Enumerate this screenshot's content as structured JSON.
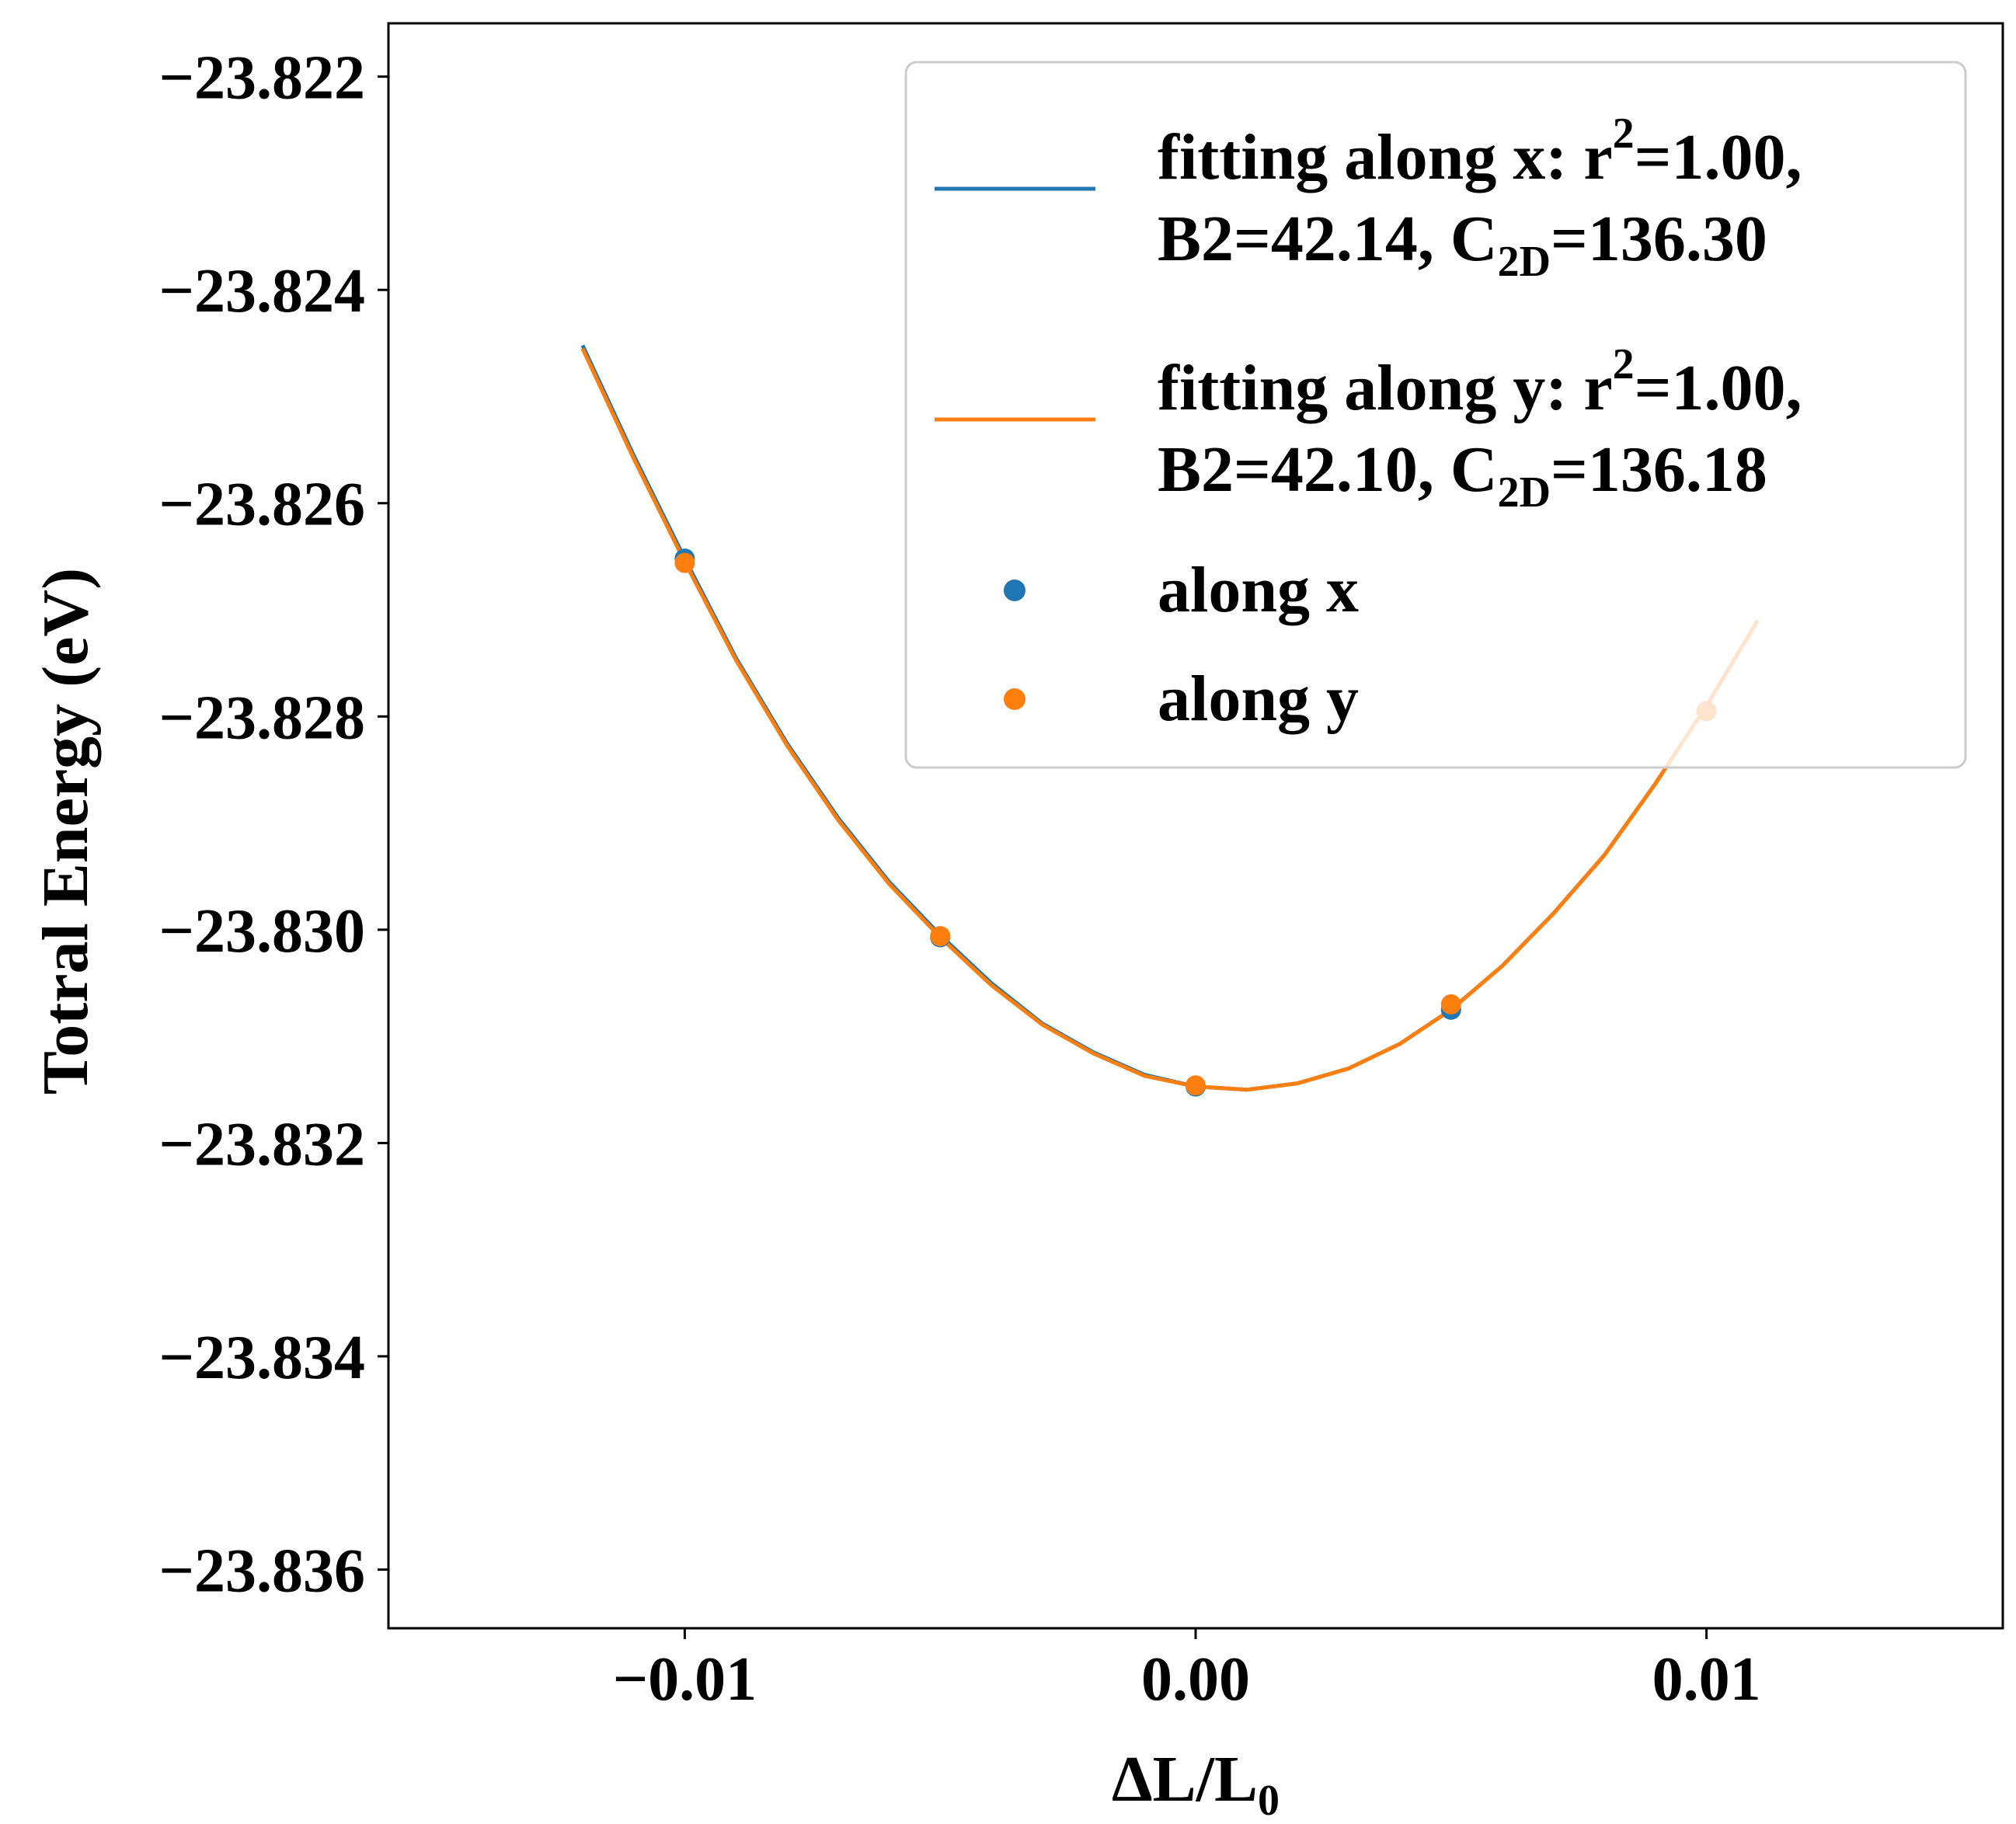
{
  "chart_data": {
    "type": "scatter",
    "xlabel": "ΔL/L",
    "xlabel_sub": "0",
    "ylabel": "Totral Energy (eV)",
    "xlim": [
      -0.0158,
      0.0158
    ],
    "ylim": [
      -23.83655,
      -23.8215
    ],
    "xticks": [
      -0.01,
      0.0,
      0.01
    ],
    "xtick_labels": [
      "−0.01",
      "0.00",
      "0.01"
    ],
    "yticks": [
      -23.822,
      -23.824,
      -23.826,
      -23.828,
      -23.83,
      -23.832,
      -23.834,
      -23.836
    ],
    "ytick_labels": [
      "−23.822",
      "−23.824",
      "−23.826",
      "−23.828",
      "−23.830",
      "−23.832",
      "−23.834",
      "−23.836"
    ],
    "grid": false,
    "legend_position": "top-right",
    "fit_curves": [
      {
        "name_line1_pre": "fitting along x: r",
        "name_line1_sup": "2",
        "name_line1_post": "=1.00,",
        "name_line2_pre": "B2=42.14, C",
        "name_line2_sub": "2D",
        "name_line2_post": "=136.30",
        "color": "#1f77b4",
        "x": [
          -0.012,
          -0.011,
          -0.01,
          -0.009,
          -0.008,
          -0.007,
          -0.006,
          -0.005,
          -0.004,
          -0.003,
          -0.002,
          -0.001,
          0.0,
          0.001,
          0.002,
          0.003,
          0.004,
          0.005,
          0.006,
          0.007,
          0.008,
          0.009,
          0.01,
          0.011
        ],
        "y": [
          -23.82452,
          -23.82555,
          -23.82652,
          -23.82745,
          -23.82825,
          -23.82895,
          -23.82955,
          -23.83005,
          -23.8305,
          -23.83088,
          -23.83115,
          -23.83136,
          -23.83147,
          -23.8315,
          -23.83144,
          -23.8313,
          -23.83107,
          -23.83075,
          -23.83034,
          -23.82985,
          -23.8293,
          -23.82863,
          -23.8279,
          -23.8271
        ]
      },
      {
        "name_line1_pre": "fitting along y: r",
        "name_line1_sup": "2",
        "name_line1_post": "=1.00,",
        "name_line2_pre": "B2=42.10, C",
        "name_line2_sub": "2D",
        "name_line2_post": "=136.18",
        "color": "#ff7f0e",
        "x": [
          -0.012,
          -0.011,
          -0.01,
          -0.009,
          -0.008,
          -0.007,
          -0.006,
          -0.005,
          -0.004,
          -0.003,
          -0.002,
          -0.001,
          0.0,
          0.001,
          0.002,
          0.003,
          0.004,
          0.005,
          0.006,
          0.007,
          0.008,
          0.009,
          0.01,
          0.011
        ],
        "y": [
          -23.82455,
          -23.82558,
          -23.82655,
          -23.82747,
          -23.82827,
          -23.82897,
          -23.82957,
          -23.83007,
          -23.83052,
          -23.83089,
          -23.83116,
          -23.83137,
          -23.83147,
          -23.8315,
          -23.83144,
          -23.8313,
          -23.83107,
          -23.83075,
          -23.83034,
          -23.82985,
          -23.8293,
          -23.82863,
          -23.8279,
          -23.8271
        ]
      }
    ],
    "series": [
      {
        "name": "along x",
        "color": "#1f77b4",
        "x": [
          -0.01,
          -0.005,
          0.0,
          0.005,
          0.01
        ],
        "y": [
          -23.82652,
          -23.83007,
          -23.83147,
          -23.83075,
          -23.82795
        ]
      },
      {
        "name": "along y",
        "color": "#ff7f0e",
        "x": [
          -0.01,
          -0.005,
          0.0,
          0.005,
          0.01
        ],
        "y": [
          -23.82656,
          -23.83006,
          -23.83146,
          -23.8307,
          -23.82795
        ]
      }
    ]
  }
}
